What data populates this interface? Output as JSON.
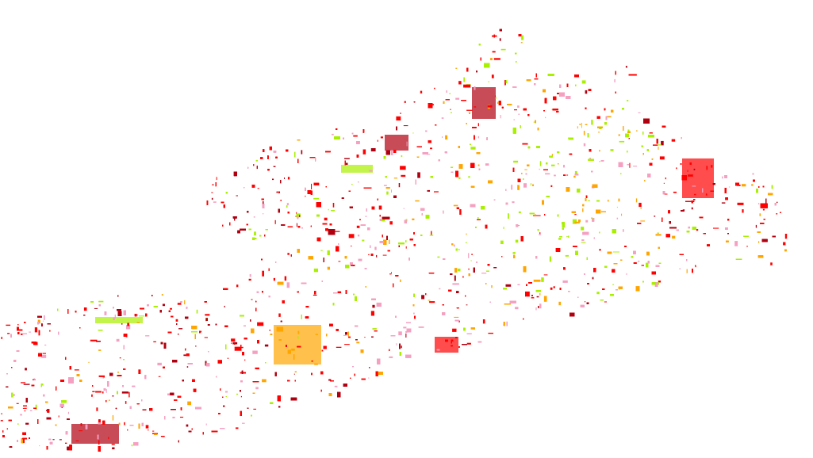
{
  "map": {
    "background": "#ffffff",
    "palette": {
      "red": "#ff0000",
      "dark_red": "#b00010",
      "pink": "#f5a0c0",
      "orange": "#ffa500",
      "lime": "#a8f000"
    }
  }
}
